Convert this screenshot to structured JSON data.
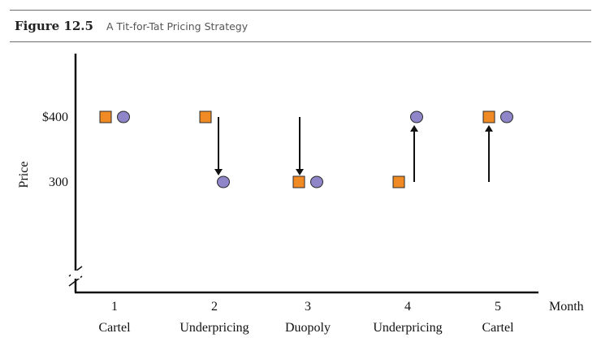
{
  "figure": {
    "label": "Figure 12.5",
    "title": "A Tit-for-Tat Pricing Strategy"
  },
  "chart_data": {
    "type": "scatter",
    "title": "A Tit-for-Tat Pricing Strategy",
    "xlabel": "Month",
    "ylabel": "Price",
    "y_tick_labels": [
      "$400",
      "300"
    ],
    "y_ticks": [
      400,
      300
    ],
    "ylim": [
      170,
      500
    ],
    "axis_break": "y",
    "grid": false,
    "months": [
      "1",
      "2",
      "3",
      "4",
      "5"
    ],
    "categories": [
      "Cartel",
      "Underpricing",
      "Duopoly",
      "Underpricing",
      "Cartel"
    ],
    "series": [
      {
        "marker": "square",
        "color": "#f08a24",
        "values": [
          400,
          400,
          300,
          300,
          400
        ]
      },
      {
        "marker": "circle",
        "color": "#8f86c9",
        "values": [
          400,
          300,
          300,
          400,
          400
        ]
      }
    ],
    "arrows": [
      {
        "month": 2,
        "from": 400,
        "to": 300
      },
      {
        "month": 3,
        "from": 400,
        "to": 300
      },
      {
        "month": 4,
        "from": 300,
        "to": 400
      },
      {
        "month": 5,
        "from": 300,
        "to": 400
      }
    ]
  }
}
